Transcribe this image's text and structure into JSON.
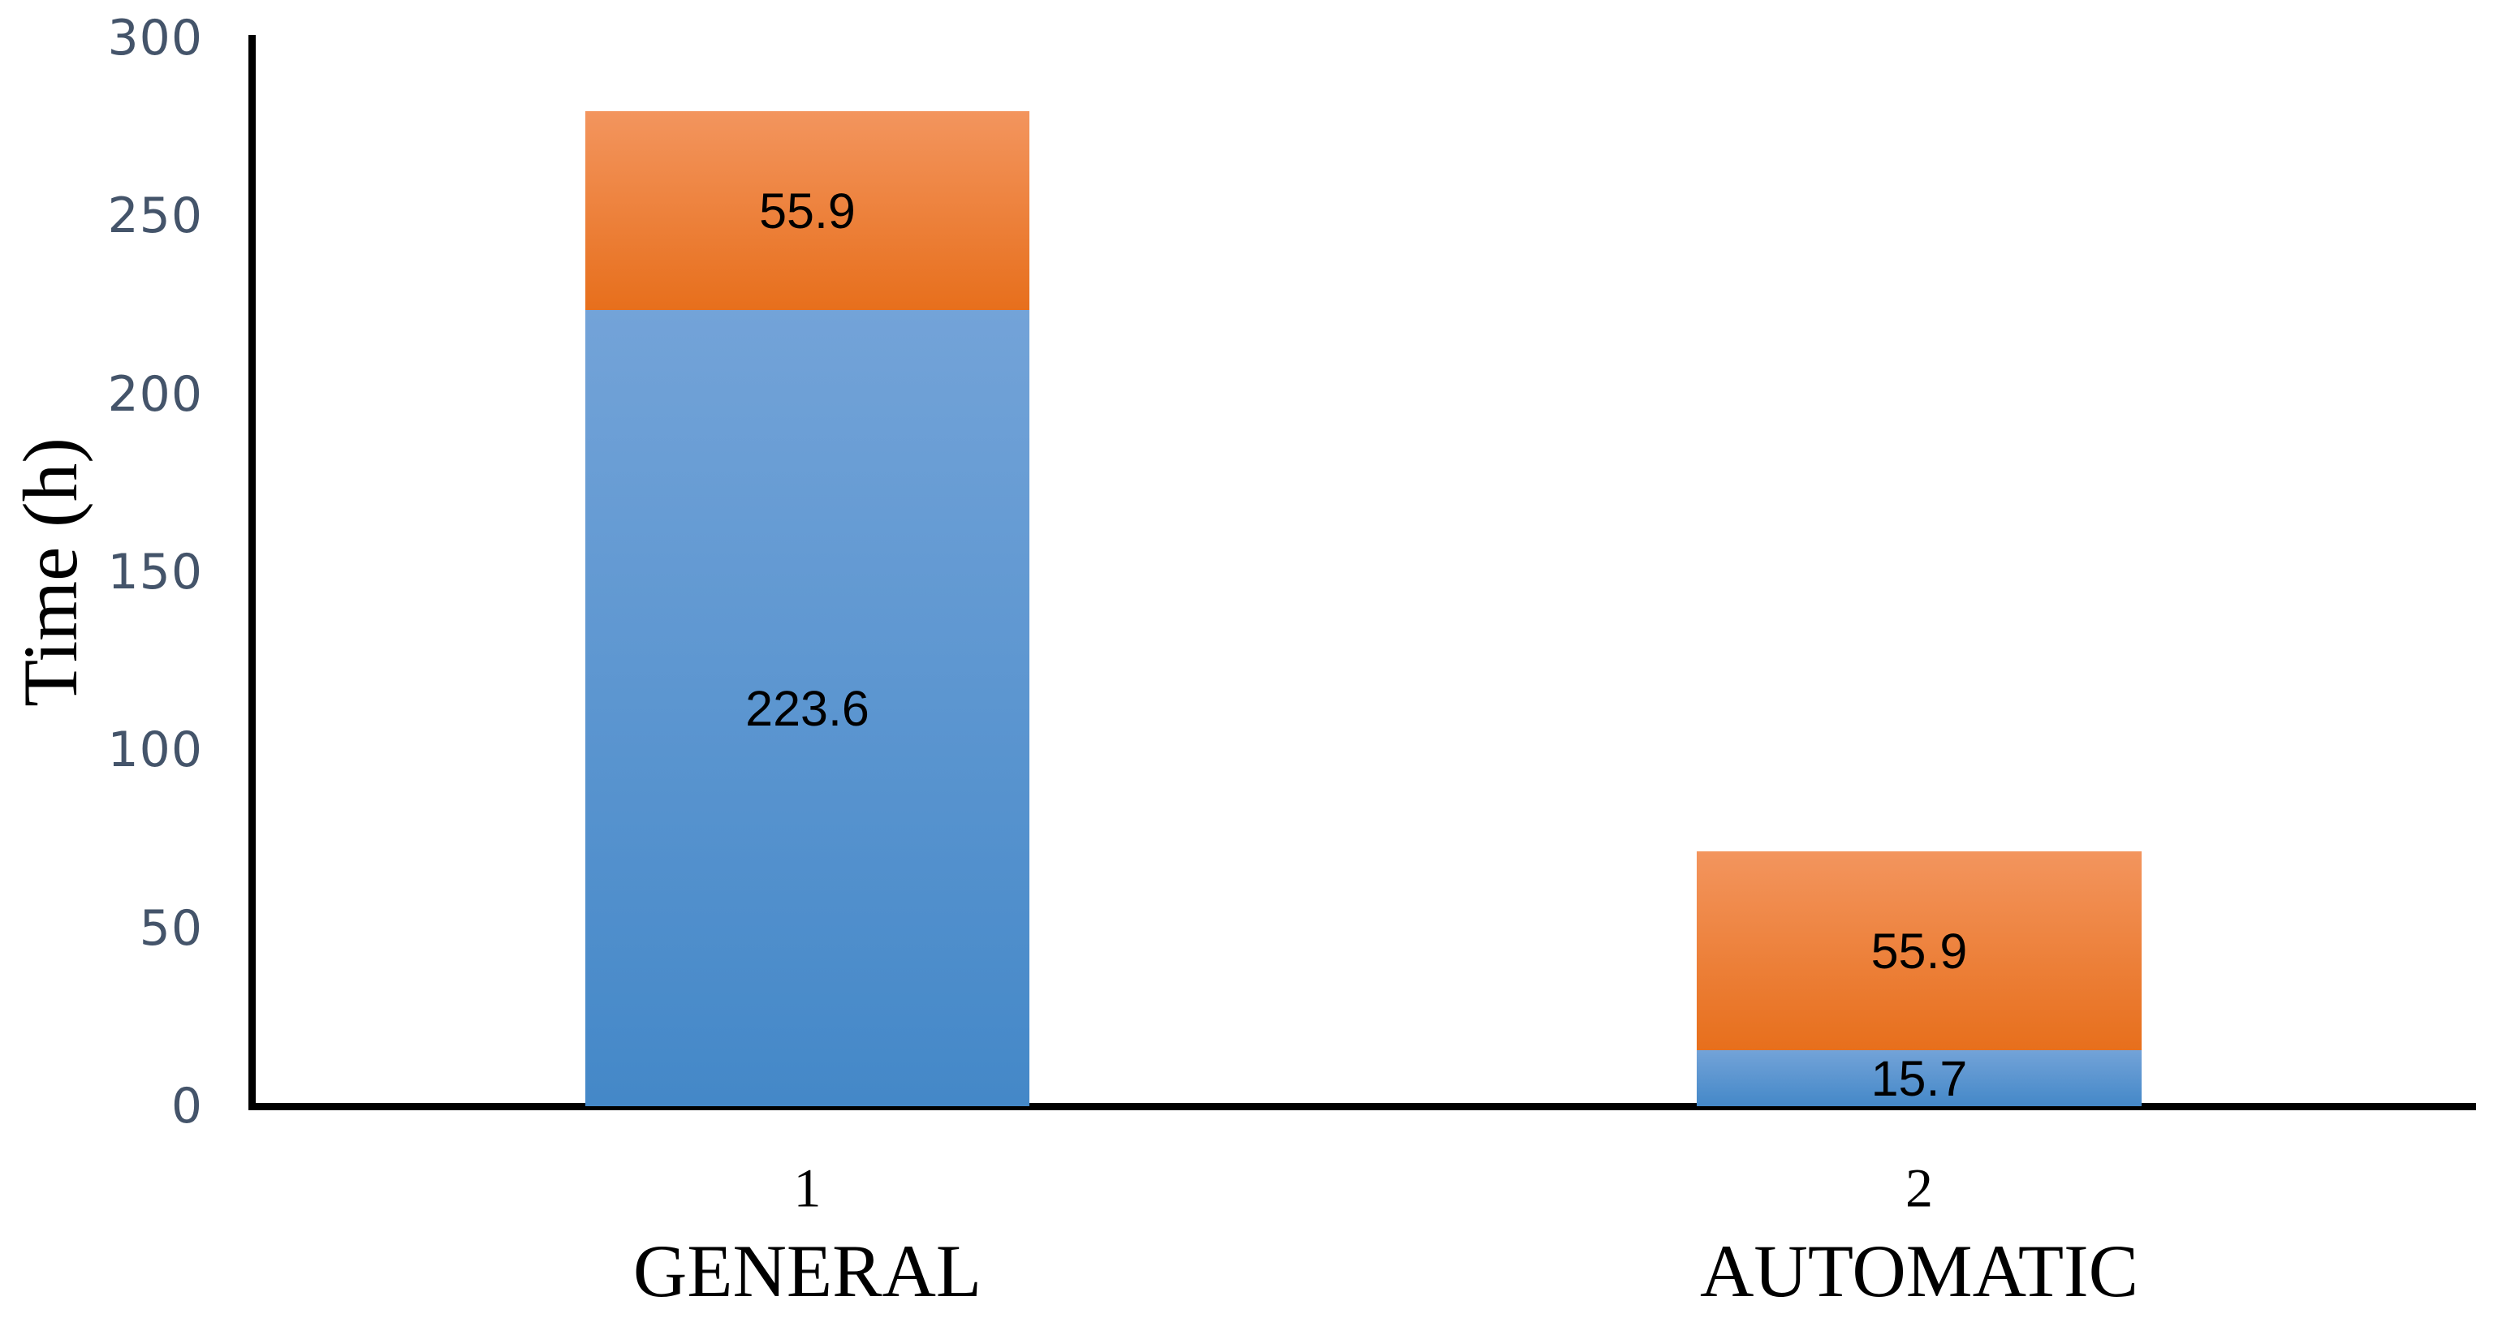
{
  "chart_data": {
    "type": "bar",
    "stacked": true,
    "title": "",
    "ylabel": "Time (h)",
    "ylim": [
      0,
      300
    ],
    "yticks": [
      "0",
      "50",
      "100",
      "150",
      "200",
      "250",
      "300"
    ],
    "grid": false,
    "legend": "none",
    "categories": [
      {
        "number": "1",
        "name": "GENERAL"
      },
      {
        "number": "2",
        "name": "AUTOMATIC"
      }
    ],
    "series": [
      {
        "name": "blue",
        "color": "#5B9BD5",
        "color_top": "#73A3D8",
        "color_bottom": "#4488C8",
        "values": [
          223.6,
          15.7
        ]
      },
      {
        "name": "orange",
        "color": "#ED7D31",
        "color_top": "#F3955E",
        "color_bottom": "#E76F1C",
        "values": [
          55.9,
          55.9
        ]
      }
    ]
  },
  "colors": {
    "axis_line": "#000000",
    "tick_label": "#44546A",
    "data_label": "#000000",
    "category_label": "#000000",
    "background": "#FFFFFF"
  }
}
